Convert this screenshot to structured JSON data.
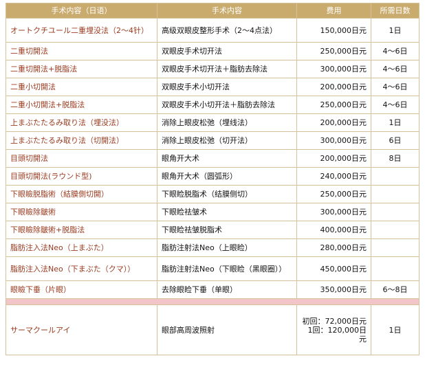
{
  "table": {
    "headers": [
      "手术内容（日语）",
      "手术内容",
      "费用",
      "所需日数"
    ],
    "rows": [
      {
        "name": "オートクチユール二重埋没法（2～4针）",
        "desc": "高级双眼皮整形手术（2～4点法）",
        "fee": "150,000日元",
        "days": "1日"
      },
      {
        "name": "二重切開法",
        "desc": "双眼皮手术切开法",
        "fee": "250,000日元",
        "days": "4～6日"
      },
      {
        "name": "二重切開法+脱脂法",
        "desc": "双眼皮手术切开法＋脂肪去除法",
        "fee": "300,000日元",
        "days": "4～6日"
      },
      {
        "name": "二重小切開法",
        "desc": "双眼皮手术小切开法",
        "fee": "200,000日元",
        "days": "4～6日"
      },
      {
        "name": "二重小切開法+脱脂法",
        "desc": "双眼皮手术小切开法＋脂肪去除法",
        "fee": "250,000日元",
        "days": "4～6日"
      },
      {
        "name": "上まぶたたるみ取り法（埋没法）",
        "desc": "消除上眼皮松弛（埋线法）",
        "fee": "200,000日元",
        "days": "1日"
      },
      {
        "name": "上まぶたたるみ取り法（切開法）",
        "desc": "消除上眼皮松弛（切开法）",
        "fee": "300,000日元",
        "days": "6日"
      },
      {
        "name": "目頭切開法",
        "desc": "眼角开大术",
        "fee": "200,000日元",
        "days": "8日"
      },
      {
        "name": "目頭切開法(ラウンド型)",
        "desc": "眼角开大术（圆弧形）",
        "fee": "240,000日元",
        "days": ""
      },
      {
        "name": "下眼瞼脱脂術（結膜側切開）",
        "desc": "下眼睑脱脂术（结膜侧切）",
        "fee": "250,000日元",
        "days": ""
      },
      {
        "name": "下眼瞼除皺術",
        "desc": "下眼睑祛皱术",
        "fee": "300,000日元",
        "days": ""
      },
      {
        "name": "下眼瞼除皺術+脱脂法",
        "desc": "下眼睑祛皱脱脂术",
        "fee": "400,000日元",
        "days": ""
      },
      {
        "name": "脂肪注入法Neo（上まぶた）",
        "desc": "脂肪注射法Neo（上眼睑）",
        "fee": "280,000日元",
        "days": ""
      },
      {
        "name": "脂肪注入法Neo（下まぶた（クマ））",
        "desc": "脂肪注射法Neo（下眼睑（黑眼圈））",
        "fee": "450,000日元",
        "days": ""
      },
      {
        "name": "眼瞼下垂（片眼）",
        "desc": "去除眼睑下垂（单眼）",
        "fee": "350,000日元",
        "days": "6～8日"
      }
    ],
    "last_row": {
      "name": "サーマクールアイ",
      "desc": "眼部高周波照射",
      "fee_line1": "初回：72,000日元",
      "fee_line2": "1回：120,000日元",
      "days": "1日"
    }
  }
}
